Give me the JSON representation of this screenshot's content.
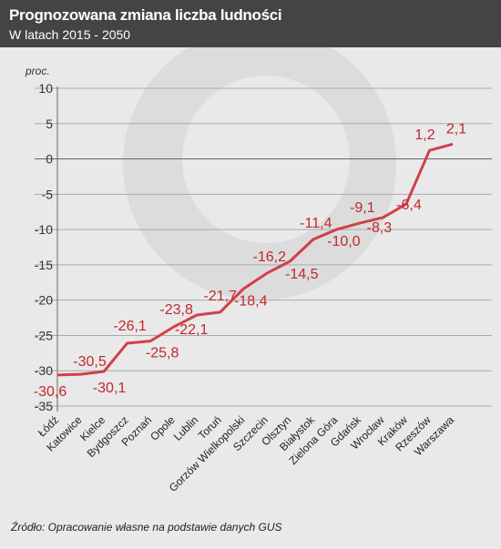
{
  "header": {
    "title": "Prognozowana zmiana liczba ludności",
    "subtitle": "W latach 2015 - 2050"
  },
  "source": "Źródło: Opracowanie własne na podstawie danych GUS",
  "colors": {
    "line": "#d0404a",
    "label": "#c0282e",
    "header_bg": "#444444",
    "background": "#e9e9e9"
  },
  "chart_data": {
    "type": "line",
    "ylabel": "proc.",
    "ylim": [
      -35,
      10
    ],
    "yticks": [
      10,
      5,
      0,
      -5,
      -10,
      -15,
      -20,
      -25,
      -30,
      -35
    ],
    "grid": true,
    "categories": [
      "Łódź",
      "Katowice",
      "Kielce",
      "Bydgoszcz",
      "Poznań",
      "Opole",
      "Lublin",
      "Toruń",
      "Gorzów Wielkopolski",
      "Szczecin",
      "Olsztyn",
      "Białystok",
      "Zielona Góra",
      "Gdańsk",
      "Wrocław",
      "Kraków",
      "Rzeszów",
      "Warszawa"
    ],
    "values": [
      -30.6,
      -30.5,
      -30.1,
      -26.1,
      -25.8,
      -23.8,
      -22.1,
      -21.7,
      -18.4,
      -16.2,
      -14.5,
      -11.4,
      -10.0,
      -9.1,
      -8.3,
      -6.4,
      1.2,
      2.1
    ],
    "value_labels": [
      "-30,6",
      "-30,5",
      "-30,1",
      "-26,1",
      "-25,8",
      "-23,8",
      "-22,1",
      "-21,7",
      "-18,4",
      "-16,2",
      "-14,5",
      "-11,4",
      "-10,0",
      "-9,1",
      "-8,3",
      "-6,4",
      "1,2",
      "2,1"
    ]
  }
}
